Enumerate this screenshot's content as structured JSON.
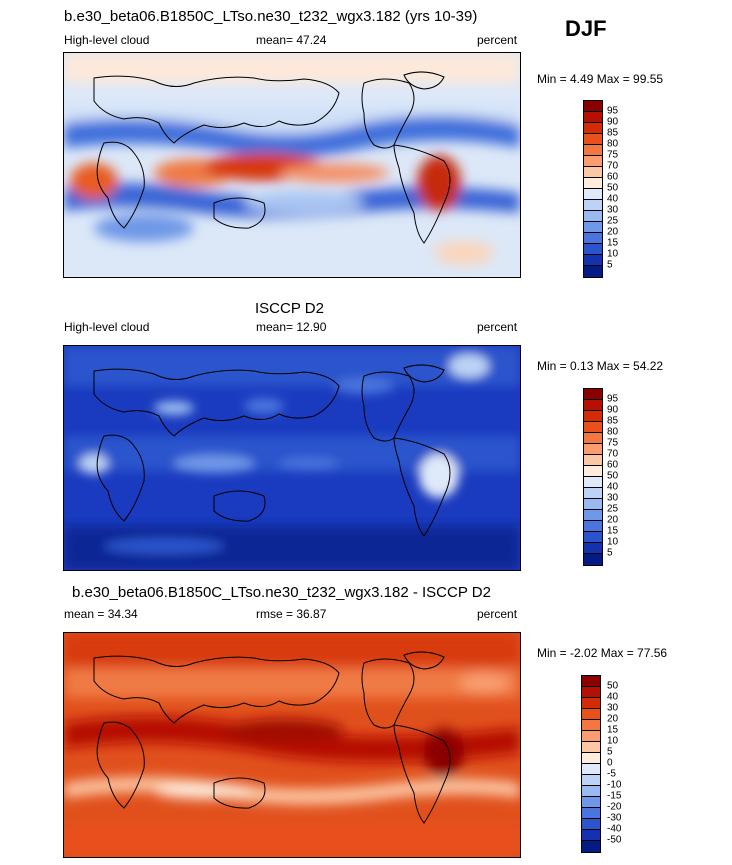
{
  "season": "DJF",
  "panels": [
    {
      "title": "b.e30_beta06.B1850C_LTso.ne30_t232_wgx3.182 (yrs 10-39)",
      "left": "High-level cloud",
      "center": "mean=  47.24",
      "right": "percent",
      "minmax": "Min =   4.49 Max =  99.55",
      "cbar_labels": [
        "95",
        "90",
        "85",
        "80",
        "75",
        "70",
        "60",
        "50",
        "40",
        "30",
        "25",
        "20",
        "15",
        "10",
        "5"
      ],
      "cbar_colors": [
        "#8a0000",
        "#b51004",
        "#d42a06",
        "#e8501c",
        "#f37742",
        "#f99d70",
        "#fcc7a4",
        "#fdebdb",
        "#dfe9f9",
        "#bcd3f5",
        "#98baf0",
        "#6f98e8",
        "#4a75de",
        "#2c54cc",
        "#1331b0",
        "#041a85"
      ]
    },
    {
      "title": "ISCCP D2",
      "left": "High-level cloud",
      "center": "mean=  12.90",
      "right": "percent",
      "minmax": "Min =   0.13 Max =  54.22",
      "cbar_labels": [
        "95",
        "90",
        "85",
        "80",
        "75",
        "70",
        "60",
        "50",
        "40",
        "30",
        "25",
        "20",
        "15",
        "10",
        "5"
      ],
      "cbar_colors": [
        "#8a0000",
        "#b51004",
        "#d42a06",
        "#e8501c",
        "#f37742",
        "#f99d70",
        "#fcc7a4",
        "#fdebdb",
        "#dfe9f9",
        "#bcd3f5",
        "#98baf0",
        "#6f98e8",
        "#4a75de",
        "#2c54cc",
        "#1331b0",
        "#041a85"
      ]
    },
    {
      "title": "b.e30_beta06.B1850C_LTso.ne30_t232_wgx3.182 - ISCCP D2",
      "left": "mean =  34.34",
      "center": "rmse =  36.87",
      "right": "percent",
      "minmax": "Min =  -2.02 Max =  77.56",
      "cbar_labels": [
        "50",
        "40",
        "30",
        "20",
        "15",
        "10",
        "5",
        "0",
        "-5",
        "-10",
        "-15",
        "-20",
        "-30",
        "-40",
        "-50"
      ],
      "cbar_colors": [
        "#8a0000",
        "#b51004",
        "#d42a06",
        "#e8501c",
        "#f37742",
        "#f99d70",
        "#fcc7a4",
        "#fdebdb",
        "#dfe9f9",
        "#bcd3f5",
        "#98baf0",
        "#6f98e8",
        "#4a75de",
        "#2c54cc",
        "#1331b0",
        "#041a85"
      ]
    }
  ]
}
